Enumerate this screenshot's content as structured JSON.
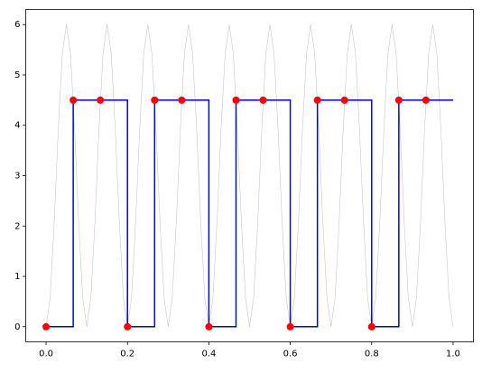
{
  "chart_data": {
    "type": "line",
    "xlim": [
      -0.05,
      1.05
    ],
    "ylim": [
      -0.3,
      6.3
    ],
    "xticks": [
      {
        "value": 0,
        "label": "0.0"
      },
      {
        "value": 0.2,
        "label": "0.2"
      },
      {
        "value": 0.4,
        "label": "0.4"
      },
      {
        "value": 0.6,
        "label": "0.6"
      },
      {
        "value": 0.8,
        "label": "0.8"
      },
      {
        "value": 1,
        "label": "1.0"
      }
    ],
    "yticks": [
      0,
      1,
      2,
      3,
      4,
      5,
      6
    ],
    "series": [
      {
        "style": "line",
        "color": "#c8c8c8",
        "x": [
          0,
          0.01,
          0.02,
          0.03,
          0.04,
          0.05,
          0.06,
          0.07,
          0.08,
          0.09,
          0.1,
          0.11,
          0.12,
          0.13,
          0.14,
          0.15,
          0.16,
          0.17,
          0.18,
          0.19,
          0.2,
          0.21,
          0.22,
          0.23,
          0.24,
          0.25,
          0.26,
          0.27,
          0.28,
          0.29,
          0.3,
          0.31,
          0.32,
          0.33,
          0.34,
          0.35,
          0.36,
          0.37,
          0.38,
          0.39,
          0.4,
          0.41,
          0.42,
          0.43,
          0.44,
          0.45,
          0.46,
          0.47,
          0.48,
          0.49,
          0.5,
          0.51,
          0.52,
          0.53,
          0.54,
          0.55,
          0.56,
          0.57,
          0.58,
          0.59,
          0.6,
          0.61,
          0.62,
          0.63,
          0.64,
          0.65,
          0.66,
          0.67,
          0.68,
          0.69,
          0.7,
          0.71,
          0.72,
          0.73,
          0.74,
          0.75,
          0.76,
          0.77,
          0.78,
          0.79,
          0.8,
          0.81,
          0.82,
          0.83,
          0.84,
          0.85,
          0.86,
          0.87,
          0.88,
          0.89,
          0.9,
          0.91,
          0.92,
          0.93,
          0.94,
          0.95,
          0.96,
          0.97,
          0.98,
          0.99,
          1
        ],
        "values": [
          0,
          0.573,
          2.073,
          3.927,
          5.427,
          6,
          5.427,
          3.927,
          2.073,
          0.573,
          0,
          0.573,
          2.073,
          3.927,
          5.427,
          6,
          5.427,
          3.927,
          2.073,
          0.573,
          0,
          0.573,
          2.073,
          3.927,
          5.427,
          6,
          5.427,
          3.927,
          2.073,
          0.573,
          0,
          0.573,
          2.073,
          3.927,
          5.427,
          6,
          5.427,
          3.927,
          2.073,
          0.573,
          0,
          0.573,
          2.073,
          3.927,
          5.427,
          6,
          5.427,
          3.927,
          2.073,
          0.573,
          0,
          0.573,
          2.073,
          3.927,
          5.427,
          6,
          5.427,
          3.927,
          2.073,
          0.573,
          0,
          0.573,
          2.073,
          3.927,
          5.427,
          6,
          5.427,
          3.927,
          2.073,
          0.573,
          0,
          0.573,
          2.073,
          3.927,
          5.427,
          6,
          5.427,
          3.927,
          2.073,
          0.573,
          0,
          0.573,
          2.073,
          3.927,
          5.427,
          6,
          5.427,
          3.927,
          2.073,
          0.573,
          0,
          0.573,
          2.073,
          3.927,
          5.427,
          6,
          5.427,
          3.927,
          2.073,
          0.573,
          0
        ]
      },
      {
        "style": "step",
        "color": "#0000ff",
        "x": [
          0,
          0.0667,
          0.1333,
          0.2,
          0.2667,
          0.3333,
          0.4,
          0.4667,
          0.5333,
          0.6,
          0.6667,
          0.7333,
          0.8,
          0.8667,
          0.9333,
          1
        ],
        "values": [
          0,
          4.5,
          4.5,
          0,
          4.5,
          4.5,
          0,
          4.5,
          4.5,
          0,
          4.5,
          4.5,
          0,
          4.5,
          4.5,
          4.5
        ]
      },
      {
        "style": "scatter",
        "color": "#ff0000",
        "x": [
          0,
          0.0667,
          0.1333,
          0.2,
          0.2667,
          0.3333,
          0.4,
          0.4667,
          0.5333,
          0.6,
          0.6667,
          0.7333,
          0.8,
          0.8667,
          0.9333
        ],
        "values": [
          0,
          4.5,
          4.5,
          0,
          4.5,
          4.5,
          0,
          4.5,
          4.5,
          0,
          4.5,
          4.5,
          0,
          4.5,
          4.5
        ]
      }
    ]
  }
}
